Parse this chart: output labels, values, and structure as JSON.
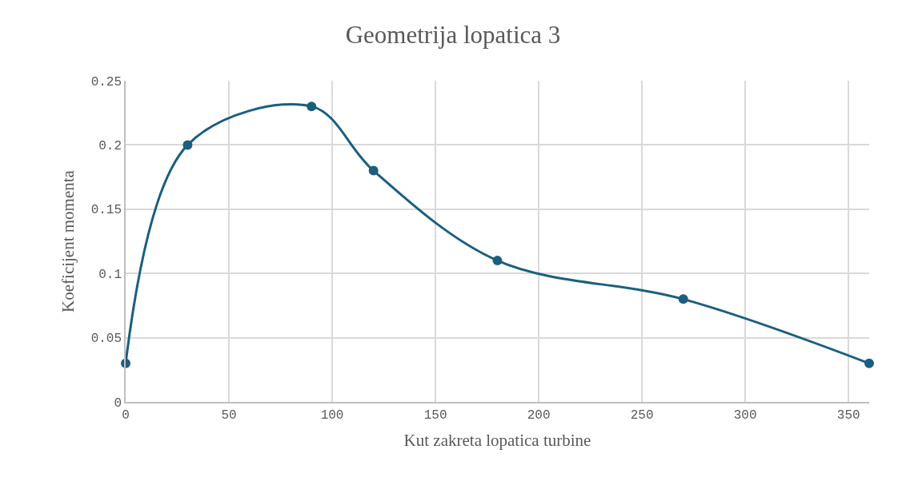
{
  "chart_data": {
    "type": "line",
    "title": "Geometrija lopatica 3",
    "xlabel": "Kut zakreta lopatica turbine",
    "ylabel": "Koeficijent momenta",
    "x": [
      0,
      30,
      90,
      120,
      180,
      270,
      360
    ],
    "series": [
      {
        "color": "#1b5e80",
        "values": [
          0.03,
          0.2,
          0.23,
          0.18,
          0.11,
          0.08,
          0.03
        ]
      }
    ],
    "xlim": [
      0,
      360
    ],
    "xticks": [
      0,
      50,
      100,
      150,
      200,
      250,
      300,
      350
    ],
    "ylim": [
      0,
      0.25
    ],
    "yticks": [
      0,
      0.05,
      0.1,
      0.15,
      0.2,
      0.25
    ],
    "grid": true,
    "marker": "circle",
    "line_style": "solid"
  }
}
